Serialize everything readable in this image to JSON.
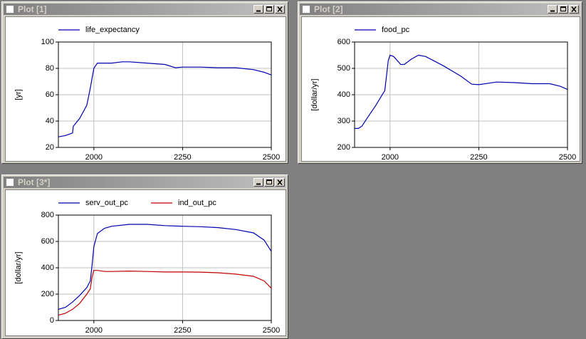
{
  "chart_data": [
    {
      "type": "line",
      "window_title": "Plot [1]",
      "y_label": "[yr]",
      "legend": "top-left",
      "grid": true,
      "xlim": [
        1900,
        2500
      ],
      "xticks": [
        2000,
        2250,
        2500
      ],
      "ylim": [
        20,
        100
      ],
      "yticks": [
        20,
        40,
        60,
        80,
        100
      ],
      "x": [
        1900,
        1920,
        1940,
        1942,
        1960,
        1980,
        1990,
        2000,
        2010,
        2050,
        2080,
        2100,
        2150,
        2200,
        2230,
        2250,
        2300,
        2350,
        2400,
        2450,
        2480,
        2500
      ],
      "series": [
        {
          "name": "life_expectancy",
          "color": "#0000b0",
          "values": [
            28,
            29,
            31,
            36,
            42,
            52,
            65,
            80,
            84,
            84,
            85,
            85,
            84,
            83,
            80.5,
            81,
            81,
            80.5,
            80.5,
            79,
            77,
            75
          ]
        }
      ]
    },
    {
      "type": "line",
      "window_title": "Plot [2]",
      "y_label": "[dollar/yr]",
      "legend": "top-left",
      "grid": true,
      "xlim": [
        1900,
        2500
      ],
      "xticks": [
        2000,
        2250,
        2500
      ],
      "ylim": [
        200,
        600
      ],
      "yticks": [
        200,
        300,
        400,
        500,
        600
      ],
      "x": [
        1900,
        1910,
        1920,
        1940,
        1960,
        1980,
        1985,
        1995,
        2000,
        2010,
        2030,
        2040,
        2060,
        2080,
        2100,
        2150,
        2200,
        2230,
        2250,
        2300,
        2350,
        2400,
        2450,
        2480,
        2500
      ],
      "series": [
        {
          "name": "food_pc",
          "color": "#0000b0",
          "values": [
            272,
            272,
            280,
            320,
            360,
            405,
            415,
            530,
            550,
            545,
            515,
            515,
            535,
            550,
            545,
            510,
            470,
            440,
            438,
            448,
            446,
            442,
            442,
            432,
            420
          ]
        }
      ]
    },
    {
      "type": "line",
      "window_title": "Plot [3*]",
      "y_label": "[dollar/yr]",
      "legend": "top-left",
      "grid": true,
      "xlim": [
        1900,
        2500
      ],
      "xticks": [
        2000,
        2250,
        2500
      ],
      "ylim": [
        0,
        800
      ],
      "yticks": [
        0,
        200,
        400,
        600,
        800
      ],
      "x": [
        1900,
        1920,
        1940,
        1960,
        1980,
        1990,
        1995,
        2000,
        2010,
        2030,
        2050,
        2100,
        2150,
        2200,
        2250,
        2300,
        2350,
        2400,
        2450,
        2480,
        2500
      ],
      "series": [
        {
          "name": "serv_out_pc",
          "color": "#0000b0",
          "values": [
            85,
            100,
            140,
            190,
            250,
            300,
            420,
            560,
            660,
            700,
            715,
            730,
            730,
            720,
            715,
            712,
            705,
            690,
            665,
            610,
            525
          ]
        },
        {
          "name": "ind_out_pc",
          "color": "#c00000",
          "values": [
            40,
            55,
            85,
            130,
            200,
            240,
            330,
            380,
            380,
            372,
            372,
            375,
            372,
            368,
            368,
            367,
            362,
            352,
            335,
            300,
            245
          ]
        }
      ]
    }
  ]
}
